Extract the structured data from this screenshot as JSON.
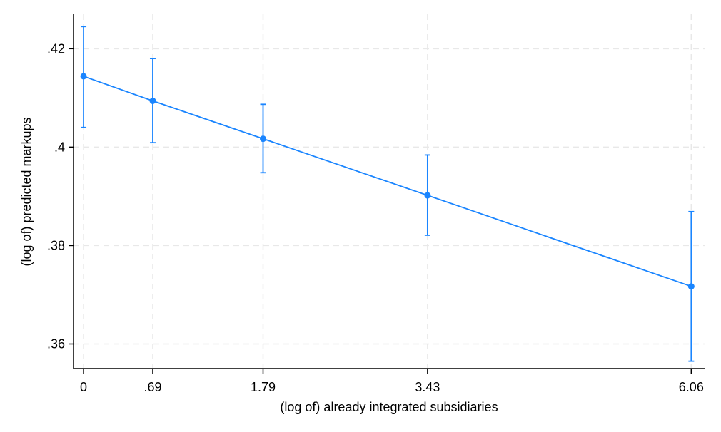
{
  "chart_data": {
    "type": "line",
    "title": "",
    "xlabel": "(log of) already integrated subsidiaries",
    "ylabel": "(log of) predicted markups",
    "x": [
      0,
      0.69,
      1.79,
      3.43,
      6.06
    ],
    "x_tick_labels": [
      "0",
      ".69",
      "1.79",
      "3.43",
      "6.06"
    ],
    "y_ticks": [
      0.36,
      0.38,
      0.4,
      0.42
    ],
    "y_tick_labels": [
      ".36",
      ".38",
      ".4",
      ".42"
    ],
    "xlim": [
      -0.1,
      6.2
    ],
    "ylim": [
      0.355,
      0.427
    ],
    "grid": true,
    "series": [
      {
        "values": [
          0.4144,
          0.4094,
          0.4017,
          0.3902,
          0.3717
        ],
        "ci_lower": [
          0.404,
          0.4009,
          0.3948,
          0.3821,
          0.3565
        ],
        "ci_upper": [
          0.4245,
          0.418,
          0.4087,
          0.3984,
          0.3869
        ],
        "color": "#1a85ff"
      }
    ]
  }
}
